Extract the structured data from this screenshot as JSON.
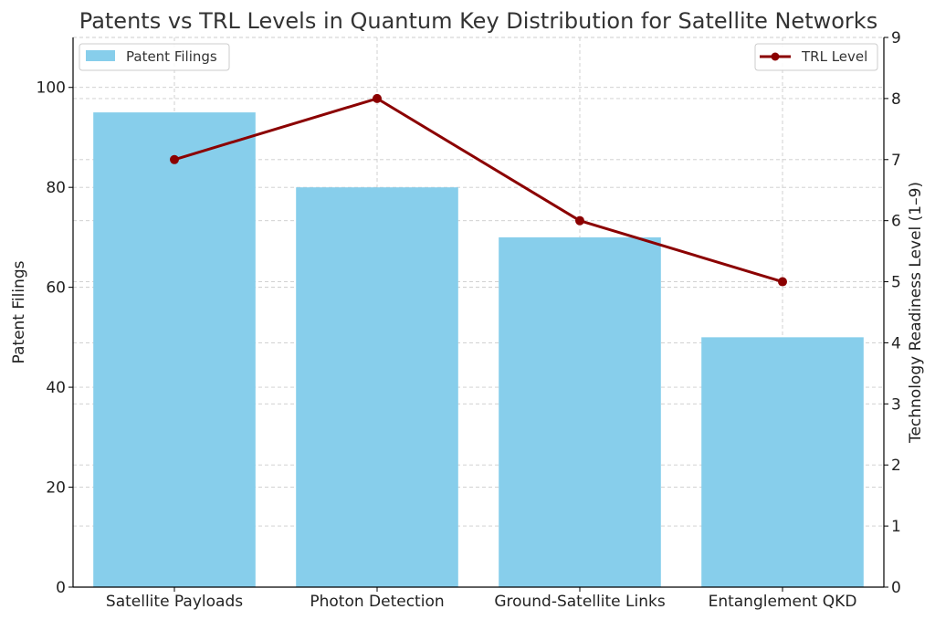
{
  "chart_data": {
    "type": "bar",
    "title": "Patents vs TRL Levels in Quantum Key Distribution for Satellite Networks",
    "categories": [
      "Satellite Payloads",
      "Photon Detection",
      "Ground-Satellite Links",
      "Entanglement QKD"
    ],
    "series": [
      {
        "name": "Patent Filings",
        "type": "bar",
        "axis": "left",
        "color": "#87CEEB",
        "values": [
          95,
          80,
          70,
          50
        ]
      },
      {
        "name": "TRL Level",
        "type": "line",
        "axis": "right",
        "color": "#8B0000",
        "values": [
          7,
          8,
          6,
          5
        ]
      }
    ],
    "ylabel": "Patent Filings",
    "y2label": "Technology Readiness Level (1–9)",
    "ylim": [
      0,
      110
    ],
    "yticks": [
      0,
      20,
      40,
      60,
      80,
      100
    ],
    "y2lim": [
      0,
      9
    ],
    "y2ticks": [
      0,
      1,
      2,
      3,
      4,
      5,
      6,
      7,
      8,
      9
    ],
    "grid": true,
    "legend_bar_position": "top-left",
    "legend_line_position": "top-right"
  }
}
